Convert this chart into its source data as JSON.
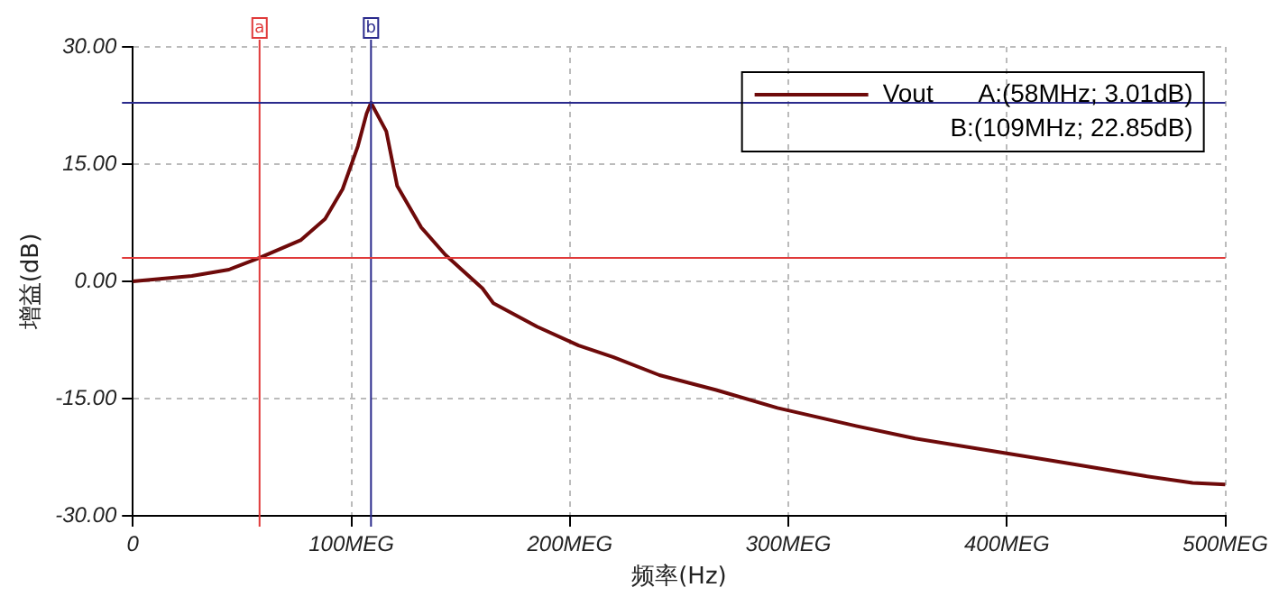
{
  "chart_data": {
    "type": "line",
    "xlabel": "频率(Hz)",
    "ylabel": "增益(dB)",
    "xlim": [
      0,
      500
    ],
    "ylim": [
      -30,
      30
    ],
    "xticks": [
      0,
      {
        "value": 100,
        "label": "100MEG"
      },
      {
        "value": 200,
        "label": "200MEG"
      },
      {
        "value": 300,
        "label": "300MEG"
      },
      {
        "value": 400,
        "label": "400MEG"
      },
      {
        "value": 500,
        "label": "500MEG"
      }
    ],
    "yticks": [
      {
        "value": -30,
        "label": "-30.00"
      },
      {
        "value": -15,
        "label": "-15.00"
      },
      {
        "value": 0,
        "label": "0.00"
      },
      {
        "value": 15,
        "label": "15.00"
      },
      {
        "value": 30,
        "label": "30.00"
      }
    ],
    "grid": true,
    "legend": "top right",
    "marker": "none",
    "line_style": "solid",
    "annotations": [
      "A:(58MHz; 3.01dB)",
      "B:(109MHz; 22.85dB)"
    ],
    "ref_lines": [
      {
        "axis": "x",
        "value": 58,
        "label": "a",
        "color": "#e03a3a"
      },
      {
        "axis": "x",
        "value": 109,
        "label": "b",
        "color": "#2a2a8c"
      },
      {
        "axis": "y",
        "value": 3.01,
        "color": "#e03a3a"
      },
      {
        "axis": "y",
        "value": 22.85,
        "color": "#2a2a8c"
      }
    ],
    "series": [
      {
        "name": "Vout",
        "color": "#6e0a0a",
        "x": [
          0,
          27,
          44,
          58,
          77,
          88,
          96,
          103,
          107,
          109,
          116,
          121,
          132,
          143,
          160,
          165,
          185,
          204,
          220,
          241,
          267,
          295,
          331,
          358,
          400,
          433,
          463,
          485,
          500
        ],
        "values": [
          0,
          0.7,
          1.5,
          3.01,
          5.3,
          8.0,
          11.8,
          17.3,
          21.5,
          22.85,
          19.2,
          12.2,
          6.9,
          3.4,
          -0.9,
          -2.8,
          -5.8,
          -8.2,
          -9.7,
          -12.0,
          -13.9,
          -16.2,
          -18.5,
          -20.1,
          -22.0,
          -23.5,
          -24.9,
          -25.8,
          -26.0
        ]
      }
    ]
  }
}
